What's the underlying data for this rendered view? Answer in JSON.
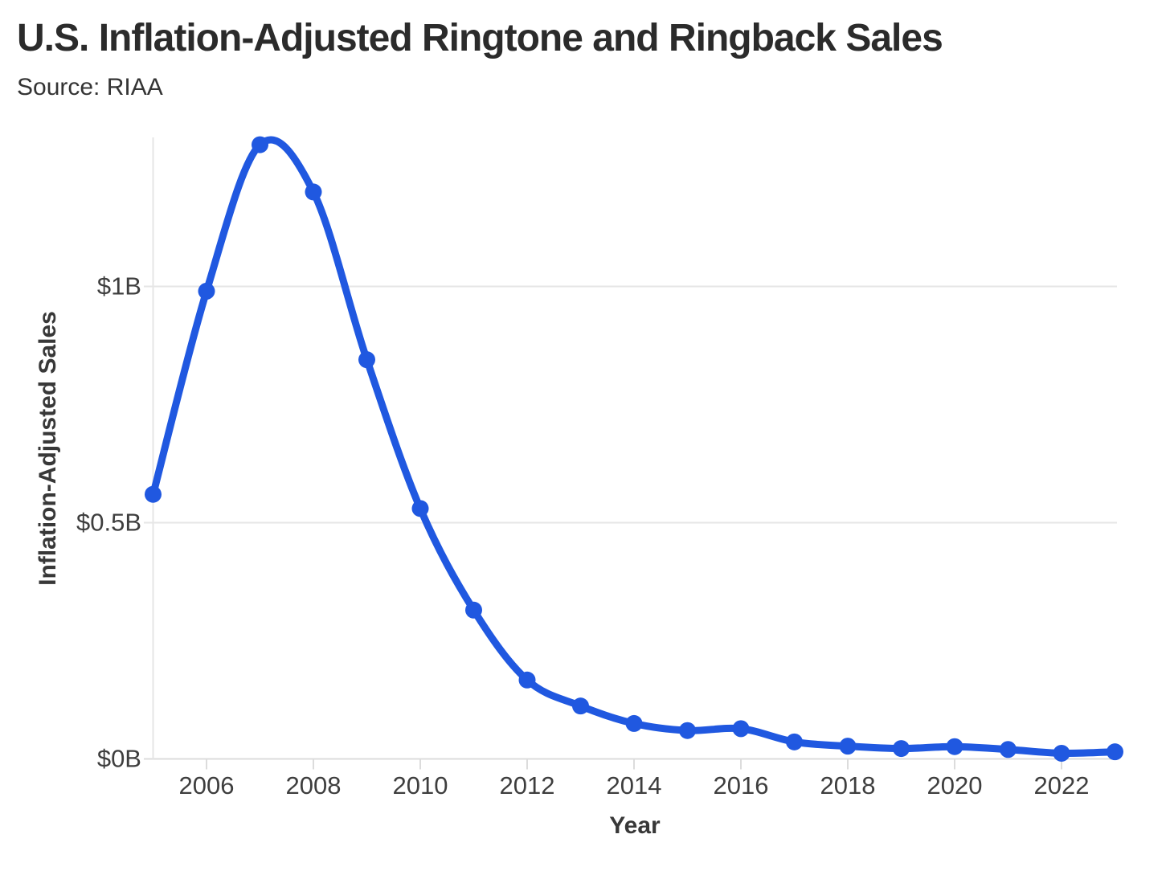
{
  "header": {
    "title": "U.S. Inflation-Adjusted Ringtone and Ringback Sales",
    "subtitle": "Source: RIAA"
  },
  "chart_data": {
    "type": "line",
    "title": "U.S. Inflation-Adjusted Ringtone and Ringback Sales",
    "source": "Source: RIAA",
    "xlabel": "Year",
    "ylabel": "Inflation-Adjusted Sales",
    "unit": "billions of USD",
    "x": [
      2005,
      2006,
      2007,
      2008,
      2009,
      2010,
      2011,
      2012,
      2013,
      2014,
      2015,
      2016,
      2017,
      2018,
      2019,
      2020,
      2021,
      2022,
      2023
    ],
    "values": [
      0.56,
      0.99,
      1.3,
      1.2,
      0.845,
      0.53,
      0.315,
      0.167,
      0.112,
      0.075,
      0.06,
      0.064,
      0.036,
      0.027,
      0.022,
      0.026,
      0.02,
      0.012,
      0.015
    ],
    "x_ticks": [
      2006,
      2008,
      2010,
      2012,
      2014,
      2016,
      2018,
      2020,
      2022
    ],
    "y_ticks": [
      {
        "value": 0,
        "label": "$0B"
      },
      {
        "value": 0.5,
        "label": "$0.5B"
      },
      {
        "value": 1,
        "label": "$1B"
      }
    ],
    "xlim": [
      2005,
      2023
    ],
    "ylim": [
      0,
      1.32
    ],
    "grid": "horizontal",
    "legend": "none",
    "line_color": "#2058e0",
    "grid_color": "#e6e6e6",
    "axis_color": "#dcdcdc",
    "background": "#ffffff"
  }
}
